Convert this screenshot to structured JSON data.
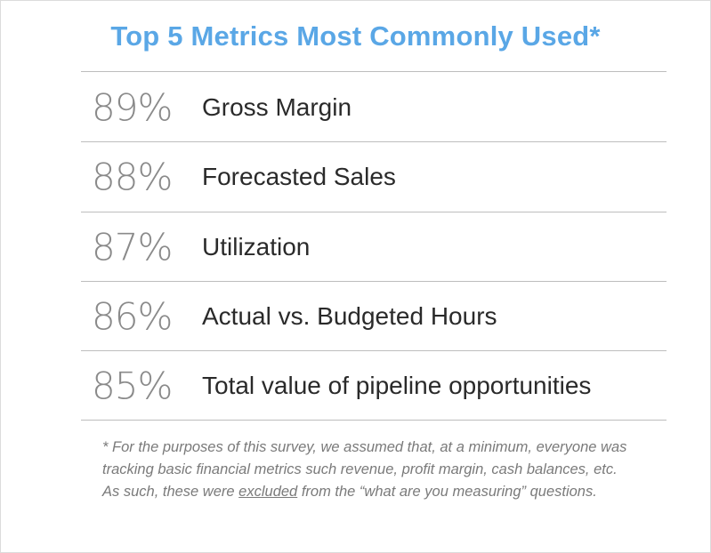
{
  "title": "Top 5 Metrics Most Commonly Used*",
  "metrics": [
    {
      "percent": "89%",
      "label": "Gross Margin"
    },
    {
      "percent": "88%",
      "label": "Forecasted Sales"
    },
    {
      "percent": "87%",
      "label": "Utilization"
    },
    {
      "percent": "86%",
      "label": "Actual vs. Budgeted Hours"
    },
    {
      "percent": "85%",
      "label": "Total value of pipeline opportunities"
    }
  ],
  "footnote": {
    "before": "* For the purposes of this survey, we assumed that, at a minimum, everyone was tracking basic financial metrics such revenue, profit margin, cash balances, etc. As such, these were ",
    "underlined": "excluded",
    "after": " from the “what are you measuring” questions."
  },
  "colors": {
    "title": "#5aa7e6",
    "percent": "#8a8a8a",
    "label": "#2a2a2a",
    "rule": "#bdbdbd",
    "footnote": "#7a7a7a"
  }
}
